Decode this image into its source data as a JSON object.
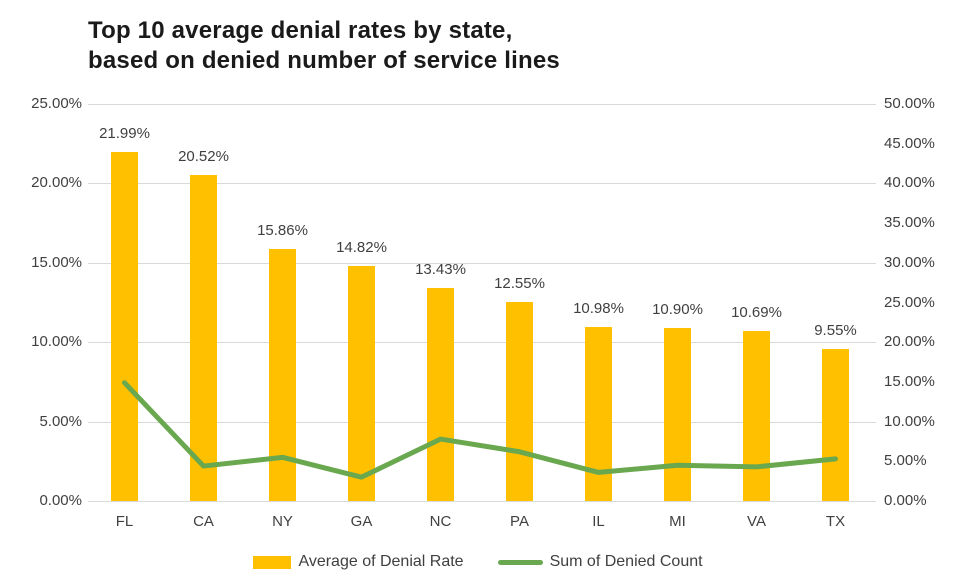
{
  "chart_data": {
    "type": "combo-bar-line",
    "title": "Top 10 average denial rates by state,",
    "title_line2": "based on denied number of service lines",
    "categories": [
      "FL",
      "CA",
      "NY",
      "GA",
      "NC",
      "PA",
      "IL",
      "MI",
      "VA",
      "TX"
    ],
    "series": [
      {
        "name": "Average of Denial Rate",
        "type": "bar",
        "axis": "left",
        "color": "#FFC000",
        "values": [
          21.99,
          20.52,
          15.86,
          14.82,
          13.43,
          12.55,
          10.98,
          10.9,
          10.69,
          9.55
        ],
        "data_labels": [
          "21.99%",
          "20.52%",
          "15.86%",
          "14.82%",
          "13.43%",
          "12.55%",
          "10.98%",
          "10.90%",
          "10.69%",
          "9.55%"
        ]
      },
      {
        "name": "Sum of Denied Count",
        "type": "line",
        "axis": "right",
        "color": "#6AA84F",
        "values": [
          14.9,
          4.4,
          5.5,
          3.0,
          7.8,
          6.2,
          3.6,
          4.5,
          4.3,
          5.3
        ]
      }
    ],
    "left_axis": {
      "range": [
        0,
        25
      ],
      "tick_labels": [
        "25.00%",
        "20.00%",
        "15.00%",
        "10.00%",
        "5.00%",
        "0.00%"
      ]
    },
    "right_axis": {
      "range": [
        0,
        50
      ],
      "tick_labels": [
        "50.00%",
        "45.00%",
        "40.00%",
        "35.00%",
        "30.00%",
        "25.00%",
        "20.00%",
        "15.00%",
        "10.00%",
        "5.00%",
        "0.00%"
      ]
    },
    "grid": "horizontal light-gray lines at left-axis ticks",
    "legend_position": "bottom-center"
  },
  "legend": {
    "items": [
      {
        "label": "Average of Denial Rate",
        "swatch": "bar",
        "color": "#FFC000"
      },
      {
        "label": "Sum of Denied Count",
        "swatch": "line",
        "color": "#6AA84F"
      }
    ]
  },
  "colors": {
    "background": "#FFFFFF",
    "bar": "#FFC000",
    "line": "#6AA84F",
    "gridline": "#D9D9D9",
    "axis_text": "#404040",
    "title_text": "#1A1A1A"
  }
}
